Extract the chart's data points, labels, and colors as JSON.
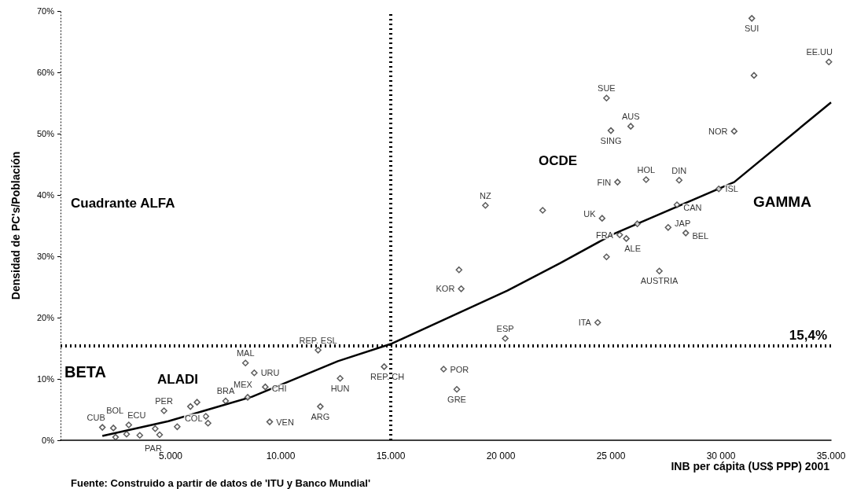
{
  "chart_data": {
    "type": "scatter",
    "xlabel": "INB per cápita (US$ PPP) 2001",
    "ylabel": "Densidad de PC's/Población",
    "xlim": [
      0,
      35000
    ],
    "ylim": [
      0,
      70
    ],
    "xticks": [
      {
        "value": 5000,
        "label": "5.000"
      },
      {
        "value": 10000,
        "label": "10.000"
      },
      {
        "value": 15000,
        "label": "15.000"
      },
      {
        "value": 20000,
        "label": "20 000"
      },
      {
        "value": 25000,
        "label": "25 000"
      },
      {
        "value": 30000,
        "label": "30 000"
      },
      {
        "value": 35000,
        "label": "35.000"
      }
    ],
    "yticks": [
      {
        "value": 0,
        "label": "0%"
      },
      {
        "value": 10,
        "label": "10%"
      },
      {
        "value": 20,
        "label": "20%"
      },
      {
        "value": 30,
        "label": "30%"
      },
      {
        "value": 40,
        "label": "40%"
      },
      {
        "value": 50,
        "label": "50%"
      },
      {
        "value": 60,
        "label": "60%"
      },
      {
        "value": 70,
        "label": "70%"
      }
    ],
    "grid": false,
    "marker": "diamond",
    "series": [
      {
        "type": "scatter",
        "color": "#333333",
        "x": [
          1900,
          2400,
          2500,
          3000,
          3100,
          3600,
          4300,
          4500,
          4700,
          5300,
          5900,
          6200,
          6600,
          6700,
          7500,
          8500,
          8400,
          8800,
          9300,
          9500,
          11700,
          11800,
          12700,
          14700,
          17400,
          18000,
          18100,
          18200,
          19300,
          20200,
          21900,
          24400,
          24600,
          24800,
          24800,
          25000,
          25300,
          25400,
          25700,
          25900,
          26200,
          26600,
          27200,
          27600,
          28000,
          28100,
          28400,
          29900,
          30600,
          31400,
          31500,
          34900
        ],
        "values": [
          2.1,
          2.0,
          0.5,
          1.0,
          2.5,
          0.8,
          1.9,
          0.9,
          4.8,
          2.2,
          5.5,
          6.2,
          3.9,
          2.8,
          6.4,
          7.0,
          12.6,
          11.0,
          8.7,
          3.0,
          14.7,
          5.5,
          10.1,
          12.0,
          11.6,
          8.3,
          27.8,
          24.7,
          38.3,
          16.6,
          37.5,
          19.2,
          36.2,
          29.9,
          55.8,
          50.5,
          42.1,
          33.5,
          32.9,
          51.2,
          35.3,
          42.5,
          27.6,
          34.7,
          38.4,
          42.4,
          33.8,
          41.0,
          50.4,
          68.8,
          59.5,
          61.7
        ],
        "value_labels": [
          "CUB",
          "BOL",
          null,
          null,
          "ECU",
          null,
          null,
          "PAR",
          "PER",
          null,
          "COL",
          null,
          null,
          null,
          "BRA",
          "MEX",
          "MAL",
          "URU",
          "CHI",
          "VEN",
          "REP. ESL",
          "ARG",
          "HUN",
          "REP. CH",
          "POR",
          "GRE",
          null,
          "KOR",
          "NZ",
          "ESP",
          null,
          "ITA",
          "UK",
          null,
          "SUE",
          "SING",
          "FIN",
          "FRA",
          "ALE",
          "AUS",
          null,
          "HOL",
          "AUSTRIA",
          "JAP",
          "CAN",
          "DIN",
          "BEL",
          "ISL",
          "NOR",
          "SUI",
          null,
          "EE.UU"
        ]
      },
      {
        "type": "line",
        "color": "#000000",
        "marker": "none",
        "line_style": "solid",
        "x": [
          1900,
          4900,
          8700,
          12600,
          15000,
          20300,
          22700,
          25100,
          30600,
          35000
        ],
        "values": [
          0.7,
          3.1,
          7.1,
          12.9,
          15.7,
          24.4,
          28.9,
          33.6,
          42.1,
          55.1
        ]
      }
    ],
    "ref_lines": [
      {
        "axis": "x",
        "value": 15000,
        "label": null,
        "line_style": "dotted",
        "color": "#000000"
      },
      {
        "axis": "y",
        "value": 15.4,
        "label": "15,4%",
        "line_style": "dotted",
        "color": "#000000"
      }
    ],
    "annotations": [
      "Cuadrante ALFA",
      "BETA",
      "ALADI",
      "OCDE",
      "GAMMA",
      "Fuente: Construido a partir de datos de 'ITU y Banco Mundial'"
    ]
  }
}
